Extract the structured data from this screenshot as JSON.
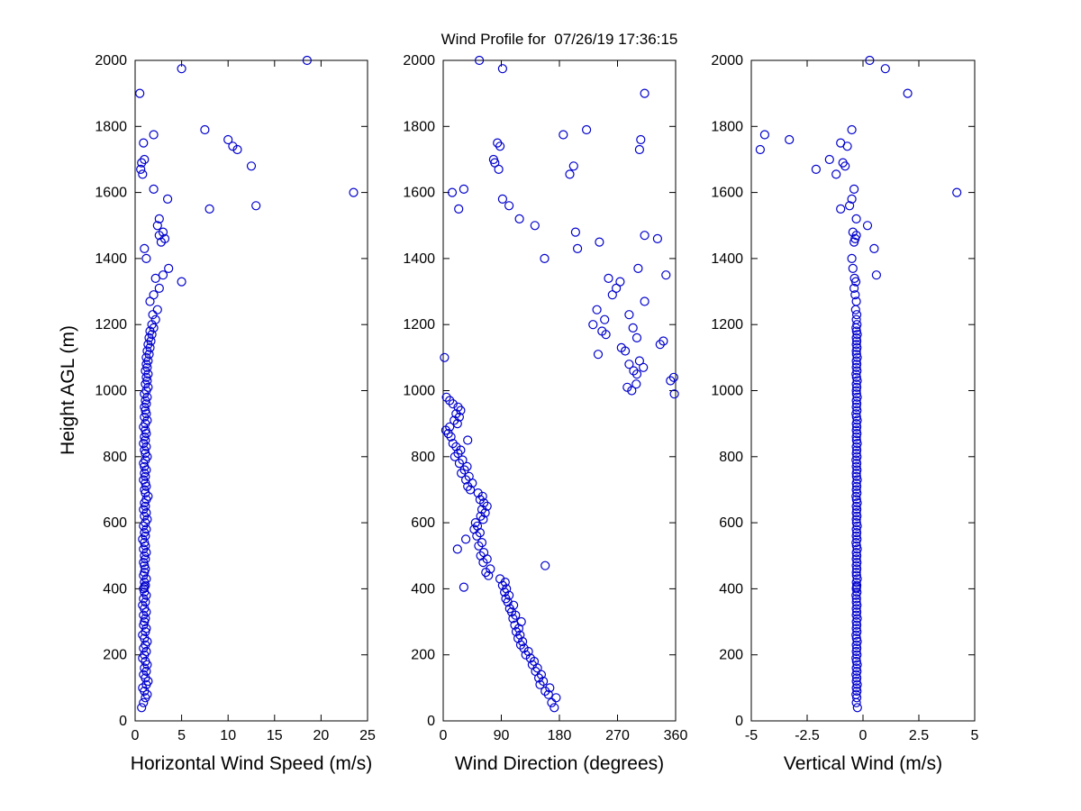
{
  "figure": {
    "background": "#ffffff",
    "axis_color": "#000000",
    "marker_color": "#0000cc"
  },
  "chart_data": {
    "type": "scatter",
    "title": "Wind Profile for  07/26/19 17:36:15",
    "grid": false,
    "legend": "none",
    "marker": "open-circle",
    "y_axis": {
      "label": "Height AGL (m)",
      "range": [
        0,
        2000
      ],
      "ticks": [
        0,
        200,
        400,
        600,
        800,
        1000,
        1200,
        1400,
        1600,
        1800,
        2000
      ]
    },
    "subplots": [
      {
        "id": "speed",
        "xlabel": "Horizontal Wind Speed (m/s)",
        "xlim": [
          0,
          25
        ],
        "xticks": [
          0,
          5,
          10,
          15,
          20,
          25
        ],
        "xtick_labels": [
          "0",
          "5",
          "10",
          "15",
          "20",
          "25"
        ]
      },
      {
        "id": "direction",
        "xlabel": "Wind Direction (degrees)",
        "xlim": [
          0,
          360
        ],
        "xticks": [
          0,
          90,
          180,
          270,
          360
        ],
        "xtick_labels": [
          "0",
          "90",
          "180",
          "270",
          "360"
        ]
      },
      {
        "id": "vertical",
        "xlabel": "Vertical Wind (m/s)",
        "xlim": [
          -5,
          5
        ],
        "xticks": [
          -5,
          -2.5,
          0,
          2.5,
          5
        ],
        "xtick_labels": [
          "-5",
          "-2.5",
          "0",
          "2.5",
          "5"
        ]
      }
    ],
    "profile": {
      "columns": [
        "height_m",
        "horizontal_speed_ms",
        "direction_deg",
        "vertical_ms"
      ],
      "rows": [
        [
          40,
          0.7,
          172,
          -0.25
        ],
        [
          55,
          0.9,
          168,
          -0.3
        ],
        [
          70,
          1.1,
          175,
          -0.28
        ],
        [
          80,
          1.3,
          163,
          -0.31
        ],
        [
          90,
          1.0,
          158,
          -0.27
        ],
        [
          100,
          0.8,
          165,
          -0.3
        ],
        [
          110,
          1.2,
          150,
          -0.26
        ],
        [
          120,
          1.4,
          155,
          -0.3
        ],
        [
          130,
          1.1,
          148,
          -0.28
        ],
        [
          140,
          0.9,
          152,
          -0.31
        ],
        [
          150,
          1.2,
          143,
          -0.27
        ],
        [
          160,
          1.0,
          146,
          -0.3
        ],
        [
          170,
          1.3,
          138,
          -0.26
        ],
        [
          180,
          1.1,
          141,
          -0.29
        ],
        [
          190,
          0.8,
          135,
          -0.31
        ],
        [
          200,
          1.0,
          128,
          -0.27
        ],
        [
          210,
          1.2,
          132,
          -0.3
        ],
        [
          220,
          0.9,
          125,
          -0.28
        ],
        [
          230,
          1.1,
          120,
          -0.3
        ],
        [
          240,
          1.3,
          123,
          -0.26
        ],
        [
          250,
          1.0,
          116,
          -0.29
        ],
        [
          260,
          0.8,
          119,
          -0.31
        ],
        [
          270,
          1.1,
          113,
          -0.27
        ],
        [
          280,
          1.2,
          117,
          -0.3
        ],
        [
          290,
          0.9,
          111,
          -0.28
        ],
        [
          300,
          1.0,
          121,
          -0.3
        ],
        [
          310,
          1.1,
          108,
          -0.26
        ],
        [
          320,
          0.9,
          112,
          -0.3
        ],
        [
          330,
          1.2,
          106,
          -0.28
        ],
        [
          340,
          1.0,
          103,
          -0.3
        ],
        [
          350,
          0.8,
          109,
          -0.27
        ],
        [
          360,
          1.1,
          100,
          -0.3
        ],
        [
          370,
          0.9,
          97,
          -0.29
        ],
        [
          380,
          1.2,
          102,
          -0.31
        ],
        [
          390,
          1.0,
          95,
          -0.27
        ],
        [
          400,
          0.9,
          98,
          -0.3
        ],
        [
          405,
          1.0,
          32,
          -0.29
        ],
        [
          410,
          1.1,
          92,
          -0.28
        ],
        [
          420,
          1.0,
          96,
          -0.3
        ],
        [
          430,
          1.2,
          88,
          -0.26
        ],
        [
          440,
          0.9,
          70,
          -0.29
        ],
        [
          450,
          1.0,
          66,
          -0.3
        ],
        [
          460,
          1.1,
          73,
          -0.28
        ],
        [
          470,
          1.0,
          158,
          -0.3
        ],
        [
          480,
          0.9,
          62,
          -0.27
        ],
        [
          490,
          1.1,
          68,
          -0.3
        ],
        [
          500,
          1.0,
          58,
          -0.28
        ],
        [
          510,
          1.2,
          63,
          -0.3
        ],
        [
          520,
          0.9,
          22,
          -0.26
        ],
        [
          530,
          1.1,
          55,
          -0.29
        ],
        [
          540,
          1.0,
          60,
          -0.31
        ],
        [
          550,
          0.8,
          35,
          -0.27
        ],
        [
          560,
          1.1,
          52,
          -0.3
        ],
        [
          570,
          1.0,
          57,
          -0.28
        ],
        [
          580,
          1.2,
          48,
          -0.3
        ],
        [
          590,
          0.9,
          53,
          -0.26
        ],
        [
          600,
          1.1,
          50,
          -0.29
        ],
        [
          610,
          1.3,
          62,
          -0.3
        ],
        [
          620,
          1.0,
          58,
          -0.27
        ],
        [
          630,
          1.2,
          65,
          -0.3
        ],
        [
          640,
          0.9,
          60,
          -0.28
        ],
        [
          650,
          1.1,
          68,
          -0.3
        ],
        [
          660,
          1.0,
          63,
          -0.26
        ],
        [
          670,
          1.2,
          57,
          -0.29
        ],
        [
          680,
          1.4,
          61,
          -0.31
        ],
        [
          690,
          1.1,
          54,
          -0.27
        ],
        [
          700,
          1.0,
          42,
          -0.3
        ],
        [
          710,
          1.2,
          38,
          -0.28
        ],
        [
          720,
          1.1,
          45,
          -0.3
        ],
        [
          730,
          0.9,
          35,
          -0.26
        ],
        [
          740,
          1.1,
          40,
          -0.29
        ],
        [
          750,
          1.0,
          28,
          -0.3
        ],
        [
          760,
          1.2,
          33,
          -0.27
        ],
        [
          770,
          1.0,
          37,
          -0.3
        ],
        [
          780,
          0.9,
          25,
          -0.28
        ],
        [
          790,
          1.1,
          30,
          -0.31
        ],
        [
          800,
          1.3,
          18,
          -0.27
        ],
        [
          810,
          1.1,
          23,
          -0.3
        ],
        [
          820,
          1.0,
          27,
          -0.28
        ],
        [
          830,
          1.2,
          20,
          -0.3
        ],
        [
          840,
          0.9,
          15,
          -0.26
        ],
        [
          850,
          1.1,
          38,
          -0.29
        ],
        [
          860,
          1.0,
          12,
          -0.3
        ],
        [
          870,
          1.2,
          8,
          -0.27
        ],
        [
          880,
          1.1,
          4,
          -0.3
        ],
        [
          890,
          0.9,
          10,
          -0.28
        ],
        [
          900,
          1.1,
          22,
          -0.3
        ],
        [
          910,
          1.3,
          17,
          -0.26
        ],
        [
          920,
          1.0,
          25,
          -0.29
        ],
        [
          930,
          1.2,
          20,
          -0.31
        ],
        [
          940,
          1.1,
          27,
          -0.27
        ],
        [
          950,
          1.0,
          23,
          -0.3
        ],
        [
          960,
          1.2,
          15,
          -0.28
        ],
        [
          970,
          1.1,
          10,
          -0.3
        ],
        [
          980,
          1.3,
          5,
          -0.26
        ],
        [
          990,
          1.0,
          358,
          -0.29
        ],
        [
          1000,
          1.2,
          292,
          -0.3
        ],
        [
          1010,
          1.4,
          285,
          -0.28
        ],
        [
          1020,
          1.1,
          299,
          -0.3
        ],
        [
          1030,
          1.3,
          352,
          -0.26
        ],
        [
          1040,
          1.2,
          357,
          -0.29
        ],
        [
          1050,
          1.4,
          300,
          -0.31
        ],
        [
          1060,
          1.1,
          295,
          -0.27
        ],
        [
          1070,
          1.3,
          310,
          -0.3
        ],
        [
          1080,
          1.2,
          288,
          -0.28
        ],
        [
          1090,
          1.4,
          304,
          -0.3
        ],
        [
          1100,
          1.2,
          2,
          -0.26
        ],
        [
          1110,
          1.5,
          240,
          -0.29
        ],
        [
          1120,
          1.3,
          282,
          -0.3
        ],
        [
          1130,
          1.6,
          276,
          -0.27
        ],
        [
          1140,
          1.4,
          336,
          -0.3
        ],
        [
          1150,
          1.7,
          341,
          -0.28
        ],
        [
          1160,
          1.5,
          300,
          -0.3
        ],
        [
          1170,
          1.8,
          252,
          -0.26
        ],
        [
          1180,
          1.6,
          246,
          -0.29
        ],
        [
          1190,
          2.0,
          294,
          -0.31
        ],
        [
          1200,
          1.8,
          232,
          -0.27
        ],
        [
          1215,
          2.2,
          250,
          -0.3
        ],
        [
          1230,
          1.9,
          288,
          -0.28
        ],
        [
          1245,
          2.4,
          238,
          -0.33
        ],
        [
          1270,
          1.6,
          312,
          -0.3
        ],
        [
          1290,
          2.0,
          262,
          -0.35
        ],
        [
          1310,
          2.6,
          268,
          -0.4
        ],
        [
          1330,
          5.0,
          274,
          -0.32
        ],
        [
          1340,
          2.2,
          256,
          -0.38
        ],
        [
          1350,
          3.0,
          345,
          0.6
        ],
        [
          1370,
          3.6,
          302,
          -0.45
        ],
        [
          1400,
          1.2,
          157,
          -0.5
        ],
        [
          1430,
          1.0,
          208,
          0.5
        ],
        [
          1450,
          2.8,
          242,
          -0.4
        ],
        [
          1460,
          3.2,
          332,
          -0.35
        ],
        [
          1470,
          2.6,
          312,
          -0.3
        ],
        [
          1480,
          3.0,
          205,
          -0.45
        ],
        [
          1500,
          2.4,
          142,
          0.2
        ],
        [
          1520,
          2.6,
          118,
          -0.3
        ],
        [
          1550,
          8.0,
          24,
          -1.0
        ],
        [
          1560,
          13.0,
          102,
          -0.6
        ],
        [
          1580,
          3.5,
          92,
          -0.5
        ],
        [
          1600,
          23.5,
          14,
          4.2
        ],
        [
          1610,
          2.0,
          32,
          -0.4
        ],
        [
          1655,
          0.8,
          196,
          -1.2
        ],
        [
          1670,
          0.6,
          86,
          -2.1
        ],
        [
          1680,
          12.5,
          202,
          -0.8
        ],
        [
          1690,
          0.7,
          80,
          -0.9
        ],
        [
          1700,
          1.0,
          78,
          -1.5
        ],
        [
          1730,
          11.0,
          304,
          -4.6
        ],
        [
          1740,
          10.5,
          88,
          -0.7
        ],
        [
          1750,
          0.9,
          84,
          -1.0
        ],
        [
          1760,
          10.0,
          306,
          -3.3
        ],
        [
          1775,
          2.0,
          186,
          -4.4
        ],
        [
          1790,
          7.5,
          222,
          -0.5
        ],
        [
          1900,
          0.5,
          312,
          2.0
        ],
        [
          1975,
          5.0,
          92,
          1.0
        ],
        [
          2000,
          18.5,
          56,
          0.3
        ]
      ]
    }
  }
}
